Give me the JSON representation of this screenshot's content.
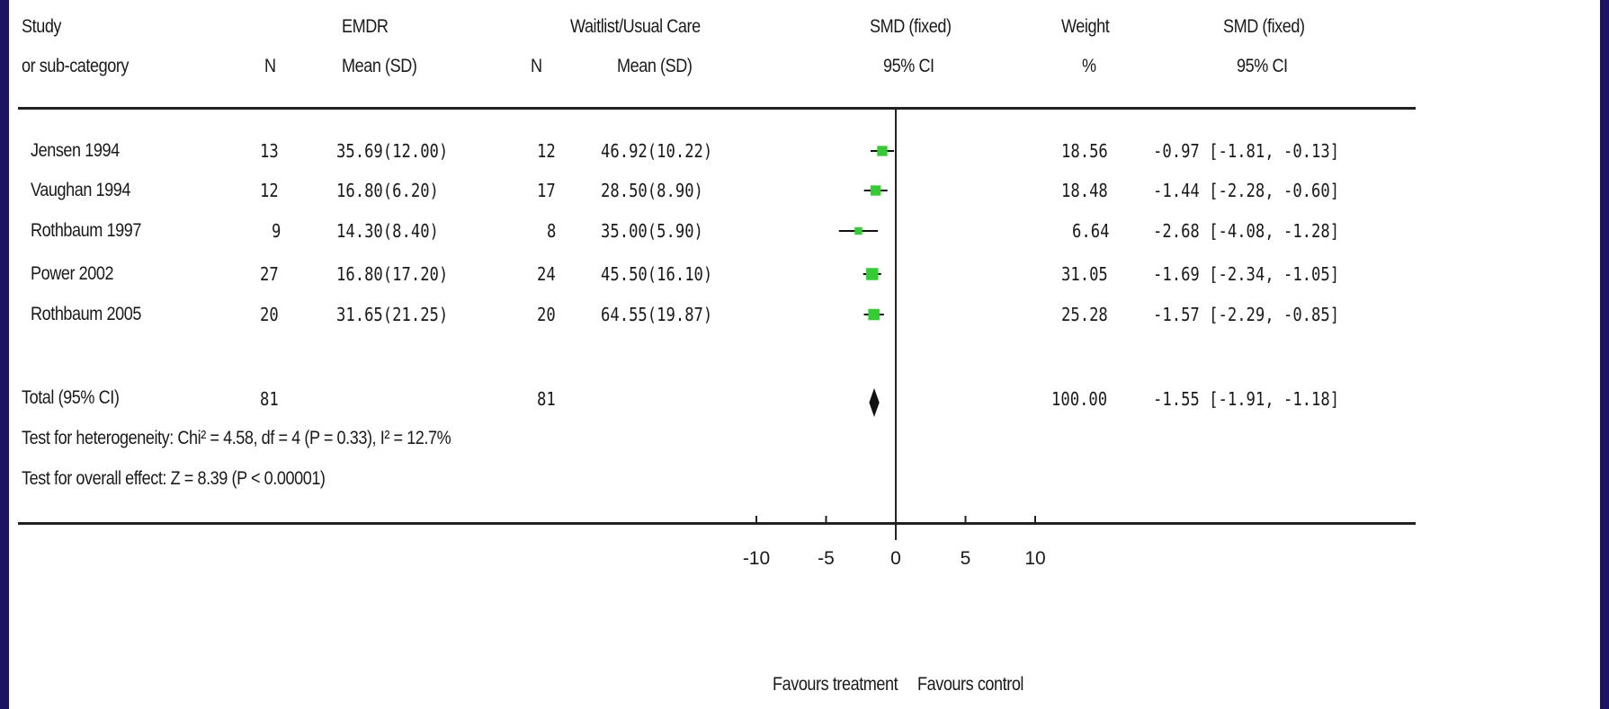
{
  "header": {
    "study": "Study",
    "subcategory": "or sub-category",
    "group1_title": "EMDR",
    "group2_title": "Waitlist/Usual Care",
    "n": "N",
    "mean_sd": "Mean (SD)",
    "effect_title": "SMD (fixed)",
    "ci_label": "95% CI",
    "weight_title": "Weight",
    "weight_unit": "%",
    "effect_title2": "SMD (fixed)",
    "ci_label2": "95% CI"
  },
  "rows": [
    {
      "study": "Jensen 1994",
      "n1": "13",
      "ms1": "35.69(12.00)",
      "n2": "12",
      "ms2": "46.92(10.22)",
      "weight": "18.56",
      "ci": "-0.97 [-1.81, -0.13]"
    },
    {
      "study": "Vaughan 1994",
      "n1": "12",
      "ms1": "16.80(6.20)",
      "n2": "17",
      "ms2": "28.50(8.90)",
      "weight": "18.48",
      "ci": "-1.44 [-2.28, -0.60]"
    },
    {
      "study": "Rothbaum 1997",
      "n1": "9",
      "ms1": "14.30(8.40)",
      "n2": "8",
      "ms2": "35.00(5.90)",
      "weight": "6.64",
      "ci": "-2.68 [-4.08, -1.28]"
    },
    {
      "study": "Power 2002",
      "n1": "27",
      "ms1": "16.80(17.20)",
      "n2": "24",
      "ms2": "45.50(16.10)",
      "weight": "31.05",
      "ci": "-1.69 [-2.34, -1.05]"
    },
    {
      "study": "Rothbaum 2005",
      "n1": "20",
      "ms1": "31.65(21.25)",
      "n2": "20",
      "ms2": "64.55(19.87)",
      "weight": "25.28",
      "ci": "-1.57 [-2.29, -0.85]"
    }
  ],
  "total": {
    "label": "Total (95% CI)",
    "n1": "81",
    "n2": "81",
    "weight": "100.00",
    "ci": "-1.55 [-1.91, -1.18]"
  },
  "heterogeneity": "Test for heterogeneity: Chi² = 4.58, df = 4 (P = 0.33), I² = 12.7%",
  "overall_effect": "Test for overall effect: Z = 8.39 (P < 0.00001)",
  "axis": {
    "favours_left": "Favours treatment",
    "favours_right": "Favours control"
  },
  "colors": {
    "frame": "#1b1464",
    "marker": "#33cc33",
    "diamond": "#111111"
  },
  "chart_data": {
    "type": "forest",
    "xlim": [
      -10,
      10
    ],
    "ticks": [
      -10,
      -5,
      0,
      5,
      10
    ],
    "tick_labels": [
      "-10",
      "-5",
      "0",
      "5",
      "10"
    ],
    "studies": [
      {
        "name": "Jensen 1994",
        "smd": -0.97,
        "lower": -1.81,
        "upper": -0.13,
        "weight": 18.56
      },
      {
        "name": "Vaughan 1994",
        "smd": -1.44,
        "lower": -2.28,
        "upper": -0.6,
        "weight": 18.48
      },
      {
        "name": "Rothbaum 1997",
        "smd": -2.68,
        "lower": -4.08,
        "upper": -1.28,
        "weight": 6.64
      },
      {
        "name": "Power 2002",
        "smd": -1.69,
        "lower": -2.34,
        "upper": -1.05,
        "weight": 31.05
      },
      {
        "name": "Rothbaum 2005",
        "smd": -1.57,
        "lower": -2.29,
        "upper": -0.85,
        "weight": 25.28
      }
    ],
    "total": {
      "smd": -1.55,
      "lower": -1.91,
      "upper": -1.18,
      "weight": 100.0
    }
  }
}
